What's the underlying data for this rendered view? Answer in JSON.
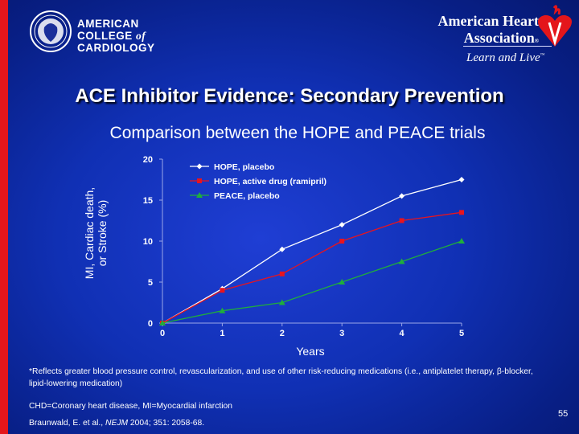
{
  "header": {
    "acc_line1": "AMERICAN",
    "acc_line2_pre": "COLLEGE ",
    "acc_line2_of": "of",
    "acc_line3": "CARDIOLOGY",
    "aha_line1": "American Heart",
    "aha_line2": "Association",
    "aha_reg": "®",
    "aha_tagline": "Learn and Live",
    "aha_tm": "™"
  },
  "slide": {
    "title": "ACE Inhibitor Evidence: Secondary Prevention",
    "subtitle": "Comparison between the HOPE and PEACE trials",
    "ylabel_line1": "MI, Cardiac death,",
    "ylabel_line2": "or Stroke (%)",
    "footnote": "*Reflects greater blood pressure control, revascularization, and use of other risk-reducing medications (i.e., antiplatelet therapy, β-blocker, lipid-lowering medication)",
    "abbreviations": "CHD=Coronary heart disease, MI=Myocardial infarction",
    "citation_authors": "Braunwald, E. et al., ",
    "citation_journal": "NEJM",
    "citation_rest": " 2004; 351: 2058-68.",
    "page_number": "55"
  },
  "colors": {
    "hope_placebo": "#ffffff",
    "hope_active": "#e8141e",
    "peace_placebo": "#1fae3c",
    "aha_red": "#e4161b"
  },
  "chart_data": {
    "type": "line",
    "title": "",
    "xlabel": "Years",
    "ylabel": "MI, Cardiac death, or Stroke (%)",
    "x": [
      0,
      1,
      2,
      3,
      4,
      5
    ],
    "xticks": [
      "0",
      "1",
      "2",
      "3",
      "4",
      "5"
    ],
    "yticks": [
      "0",
      "5",
      "10",
      "15",
      "20"
    ],
    "xlim": [
      0,
      5
    ],
    "ylim": [
      0,
      20
    ],
    "grid": false,
    "legend_position": "top-left",
    "series": [
      {
        "name": "HOPE, placebo",
        "color": "#ffffff",
        "marker": "diamond",
        "values": [
          0,
          4.2,
          9,
          12,
          15.5,
          17.5
        ]
      },
      {
        "name": "HOPE, active drug (ramipril)",
        "color": "#e8141e",
        "marker": "square",
        "values": [
          0,
          4,
          6,
          10,
          12.5,
          13.5
        ]
      },
      {
        "name": "PEACE, placebo",
        "color": "#1fae3c",
        "marker": "triangle",
        "values": [
          0,
          1.5,
          2.5,
          5,
          7.5,
          10
        ]
      }
    ]
  }
}
